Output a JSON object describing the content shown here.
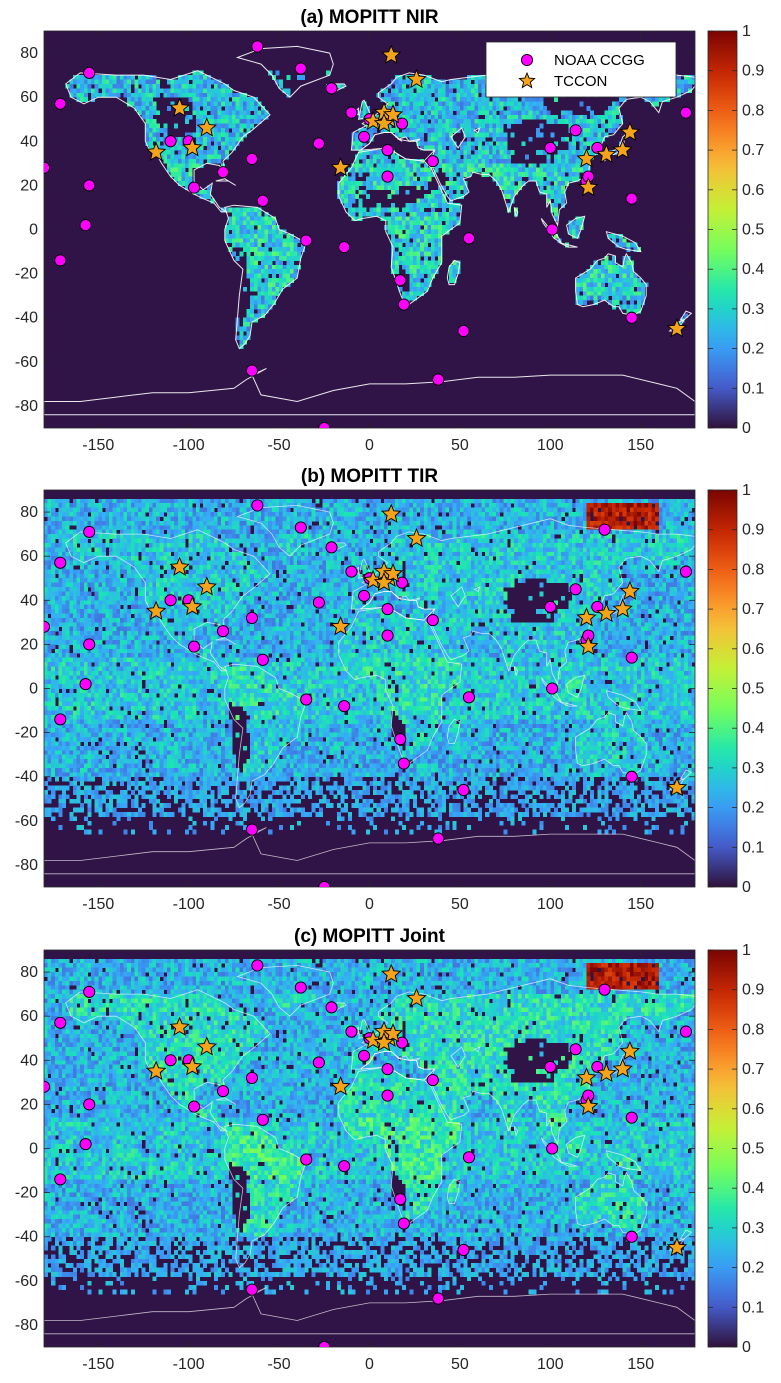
{
  "chart_data": [
    {
      "type": "heatmap",
      "title": "(a) MOPITT NIR",
      "field": "nir",
      "xlim": [
        -180,
        180
      ],
      "ylim": [
        -90,
        90
      ],
      "xticks": [
        -150,
        -100,
        -50,
        0,
        50,
        100,
        150
      ],
      "yticks": [
        80,
        60,
        40,
        20,
        0,
        -20,
        -40,
        -60,
        -80
      ],
      "colorbar_ticks": [
        0,
        0.1,
        0.2,
        0.3,
        0.4,
        0.5,
        0.6,
        0.7,
        0.8,
        0.9,
        1
      ],
      "colorbar_range": [
        0,
        1
      ],
      "legend": {
        "position": "top-right",
        "entries": [
          "NOAA CCGG",
          "TCCON"
        ]
      }
    },
    {
      "type": "heatmap",
      "title": "(b) MOPITT TIR",
      "field": "tir",
      "xlim": [
        -180,
        180
      ],
      "ylim": [
        -90,
        90
      ],
      "xticks": [
        -150,
        -100,
        -50,
        0,
        50,
        100,
        150
      ],
      "yticks": [
        80,
        60,
        40,
        20,
        0,
        -20,
        -40,
        -60,
        -80
      ],
      "colorbar_ticks": [
        0,
        0.1,
        0.2,
        0.3,
        0.4,
        0.5,
        0.6,
        0.7,
        0.8,
        0.9,
        1
      ],
      "colorbar_range": [
        0,
        1
      ]
    },
    {
      "type": "heatmap",
      "title": "(c) MOPITT Joint",
      "field": "joint",
      "xlim": [
        -180,
        180
      ],
      "ylim": [
        -90,
        90
      ],
      "xticks": [
        -150,
        -100,
        -50,
        0,
        50,
        100,
        150
      ],
      "yticks": [
        80,
        60,
        40,
        20,
        0,
        -20,
        -40,
        -60,
        -80
      ],
      "colorbar_ticks": [
        0,
        0.1,
        0.2,
        0.3,
        0.4,
        0.5,
        0.6,
        0.7,
        0.8,
        0.9,
        1
      ],
      "colorbar_range": [
        0,
        1
      ]
    }
  ],
  "markers": {
    "noaa_color": "#ff00ff",
    "tccon_color": "#f5a31a",
    "noaa_ccgg": [
      [
        -62,
        83
      ],
      [
        -155,
        71
      ],
      [
        -38,
        73
      ],
      [
        -21,
        64
      ],
      [
        -171,
        57
      ],
      [
        -180,
        28
      ],
      [
        -155,
        20
      ],
      [
        -157,
        2
      ],
      [
        -171,
        -14
      ],
      [
        -100,
        40
      ],
      [
        -110,
        40
      ],
      [
        -97,
        19
      ],
      [
        -81,
        26
      ],
      [
        -65,
        32
      ],
      [
        -59,
        13
      ],
      [
        -28,
        39
      ],
      [
        -35,
        -5
      ],
      [
        -14,
        -8
      ],
      [
        -10,
        53
      ],
      [
        -3,
        42
      ],
      [
        0,
        50
      ],
      [
        10,
        24
      ],
      [
        18,
        48
      ],
      [
        10,
        36
      ],
      [
        35,
        31
      ],
      [
        17,
        -23
      ],
      [
        19,
        -34
      ],
      [
        55,
        -4
      ],
      [
        52,
        -46
      ],
      [
        38,
        -68
      ],
      [
        -65,
        -64
      ],
      [
        -25,
        -90
      ],
      [
        100,
        37
      ],
      [
        101,
        0
      ],
      [
        114,
        45
      ],
      [
        120,
        22
      ],
      [
        121,
        24
      ],
      [
        126,
        37
      ],
      [
        130,
        72
      ],
      [
        145,
        14
      ],
      [
        145,
        -40
      ],
      [
        175,
        53
      ]
    ],
    "tccon": [
      [
        12,
        79
      ],
      [
        26,
        68
      ],
      [
        -105,
        55
      ],
      [
        -90,
        46
      ],
      [
        -98,
        37
      ],
      [
        -118,
        35
      ],
      [
        2,
        49
      ],
      [
        11,
        50
      ],
      [
        8,
        53
      ],
      [
        13,
        52
      ],
      [
        8,
        48
      ],
      [
        -16,
        28
      ],
      [
        120,
        32
      ],
      [
        131,
        34
      ],
      [
        140,
        36
      ],
      [
        144,
        44
      ],
      [
        121,
        19
      ],
      [
        170,
        -45
      ]
    ]
  },
  "colors": {
    "background": "#301447",
    "coastline": "#ffffff",
    "colormap": [
      "#30123b",
      "#4662d7",
      "#36aaf9",
      "#1ae4b6",
      "#72fe5e",
      "#c8ef34",
      "#faba39",
      "#f66b19",
      "#ca2a04",
      "#7a0403"
    ]
  }
}
